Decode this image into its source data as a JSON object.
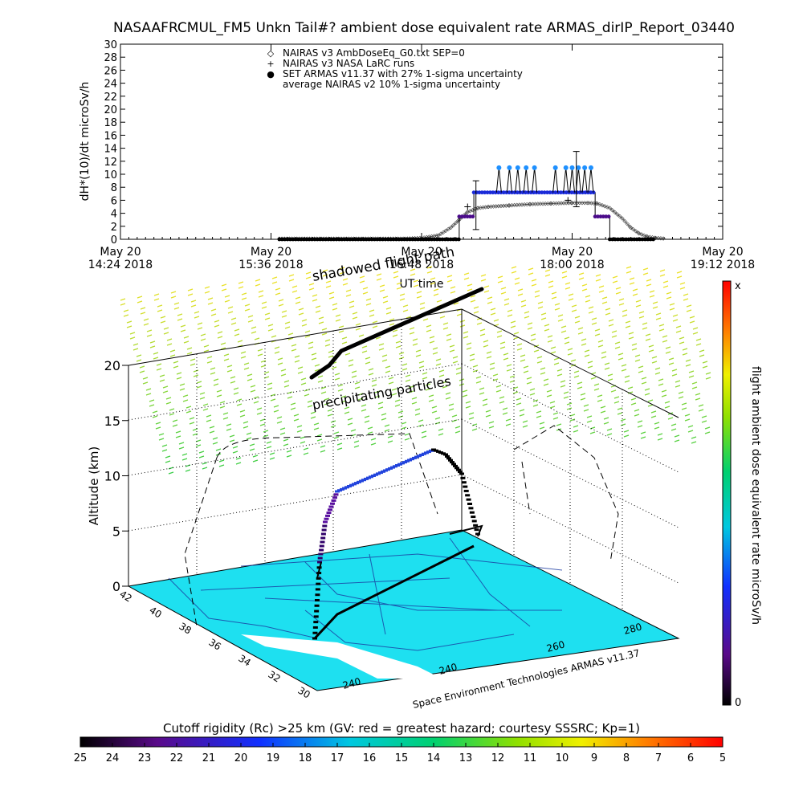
{
  "title": "NASAAFRCMUL_FM5 Unkn Tail#? ambient dose equivalent rate ARMAS_dirIP_Report_03440",
  "chart_data": [
    {
      "type": "scatter",
      "ylabel": "dH*(10)/dt microSv/h",
      "xlabel": "UT time",
      "ylim": [
        0,
        30
      ],
      "y_ticks": [
        "0",
        "2",
        "4",
        "6",
        "8",
        "10",
        "12",
        "14",
        "16",
        "18",
        "20",
        "22",
        "24",
        "26",
        "28",
        "30"
      ],
      "x_ticks": [
        {
          "line1": "May 20",
          "line2": "14:24 2018",
          "t": 864
        },
        {
          "line1": "May 20",
          "line2": "15:36 2018",
          "t": 936
        },
        {
          "line1": "May 20",
          "line2": "16:48 2018",
          "t": 1008
        },
        {
          "line1": "May 20",
          "line2": "18:00 2018",
          "t": 1080
        },
        {
          "line1": "May 20",
          "line2": "19:12 2018",
          "t": 1152
        }
      ],
      "xlim_minutes": [
        864,
        1152
      ],
      "legend": [
        {
          "symbol": "◇",
          "label": "NAIRAS v3 AmbDoseEq_G0.txt SEP=0"
        },
        {
          "symbol": "+",
          "label": "NAIRAS v3 NASA LaRC runs"
        },
        {
          "symbol": "●",
          "label": "SET ARMAS v11.37 with 27% 1-sigma uncertainty"
        },
        {
          "symbol": "",
          "label": "average NAIRAS v2 10% 1-sigma uncertainty"
        }
      ],
      "series": [
        {
          "name": "NAIRAS v3 AmbDoseEq_G0.txt SEP=0",
          "x_minutes": [
            940,
            960,
            980,
            1000,
            1008,
            1016,
            1022,
            1026,
            1030,
            1035,
            1040,
            1050,
            1060,
            1070,
            1080,
            1088,
            1092,
            1098,
            1104,
            1108,
            1112,
            1116,
            1120,
            1124
          ],
          "y": [
            0.1,
            0.1,
            0.1,
            0.1,
            0.2,
            0.6,
            1.8,
            3.0,
            4.2,
            4.8,
            5.0,
            5.2,
            5.4,
            5.5,
            5.6,
            5.6,
            5.5,
            4.8,
            3.2,
            1.8,
            0.9,
            0.4,
            0.2,
            0.1
          ]
        },
        {
          "name": "NAIRAS v3 NASA LaRC runs",
          "x_minutes": [
            1030,
            1078
          ],
          "y": [
            5.0,
            6.0
          ]
        },
        {
          "name": "SET ARMAS v11.37 with 27% 1-sigma uncertainty",
          "segments": [
            {
              "from": 940,
              "to": 1026,
              "y": 0.0
            },
            {
              "from": 1026,
              "to": 1033,
              "y": 3.5
            },
            {
              "from": 1033,
              "to": 1091,
              "y": 7.2
            },
            {
              "from": 1091,
              "to": 1098,
              "y": 3.5
            },
            {
              "from": 1098,
              "to": 1120,
              "y": 0.0
            }
          ],
          "spikes_minutes": [
            1045,
            1050,
            1054,
            1058,
            1062,
            1072,
            1077,
            1080,
            1083,
            1086,
            1089
          ],
          "spike_y": 11.0
        }
      ],
      "error_bars": [
        {
          "t": 1034,
          "low": 1.5,
          "high": 9.0
        },
        {
          "t": 1082,
          "low": 5.0,
          "high": 13.5
        }
      ]
    },
    {
      "type": "3d-trajectory",
      "zlabel": "Altitude (km)",
      "z_ticks": [
        "0",
        "5",
        "10",
        "15",
        "20"
      ],
      "lat_ticks": [
        "30",
        "32",
        "34",
        "36",
        "38",
        "40",
        "42"
      ],
      "lon_ticks": [
        "240",
        "240",
        "260",
        "280"
      ],
      "annotations": [
        "shadowed flight path",
        "precipitating particles"
      ],
      "credit": "Space Environment Technologies ARMAS v11.37",
      "colorbar_label": "flight ambient dose equivalent rate microSv/h",
      "colorbar_top": "x",
      "colorbar_bottom": "0"
    },
    {
      "type": "colorbar",
      "label": "Cutoff rigidity (Rc) >25 km (GV: red = greatest hazard; courtesy SSSRC; Kp=1)",
      "ticks": [
        "25",
        "24",
        "23",
        "22",
        "21",
        "20",
        "19",
        "18",
        "17",
        "16",
        "15",
        "14",
        "13",
        "12",
        "11",
        "10",
        "9",
        "8",
        "7",
        "6",
        "5"
      ]
    }
  ]
}
